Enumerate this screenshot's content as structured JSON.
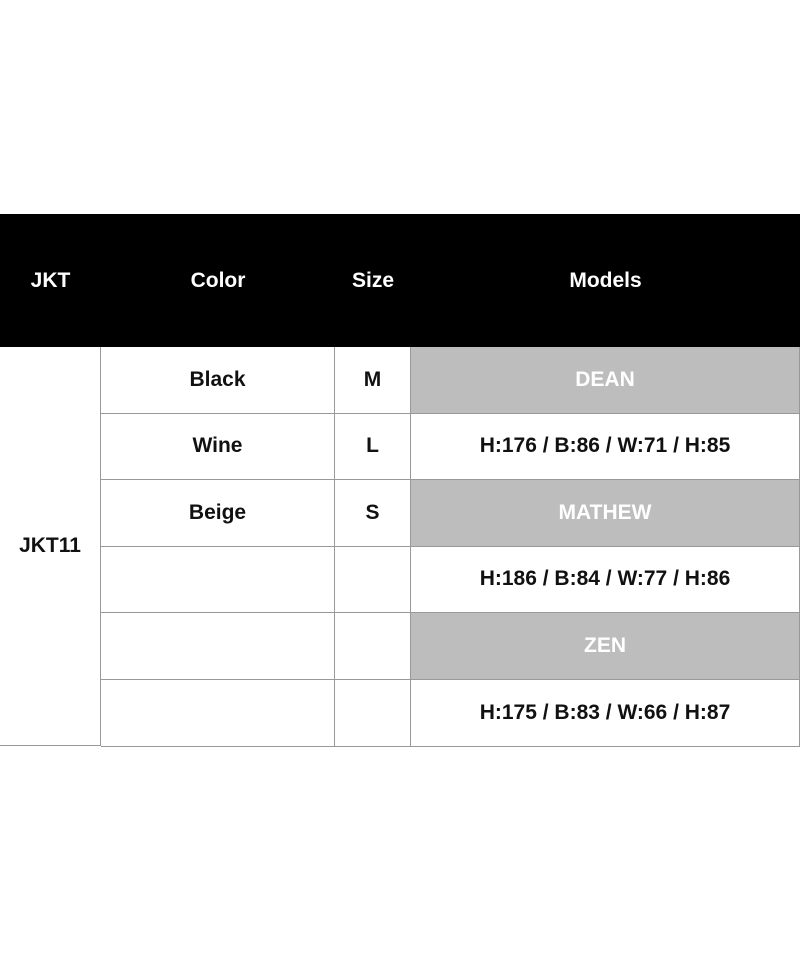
{
  "header": {
    "jkt": "JKT",
    "color": "Color",
    "size": "Size",
    "models": "Models"
  },
  "product": "JKT11",
  "colors": [
    "Black",
    "Wine",
    "Beige",
    "",
    "",
    ""
  ],
  "sizes": [
    "M",
    "L",
    "S",
    "",
    "",
    ""
  ],
  "models": [
    {
      "name": "DEAN",
      "measurements": "H:176 / B:86 / W:71 / H:85"
    },
    {
      "name": "MATHEW",
      "measurements": "H:186 / B:84 / W:77 / H:86"
    },
    {
      "name": "ZEN",
      "measurements": "H:175 / B:83 / W:66 / H:87"
    }
  ],
  "colors_palette": {
    "header_bg": "#000000",
    "model_name_bg": "#bdbdbd",
    "border": "#999999"
  }
}
